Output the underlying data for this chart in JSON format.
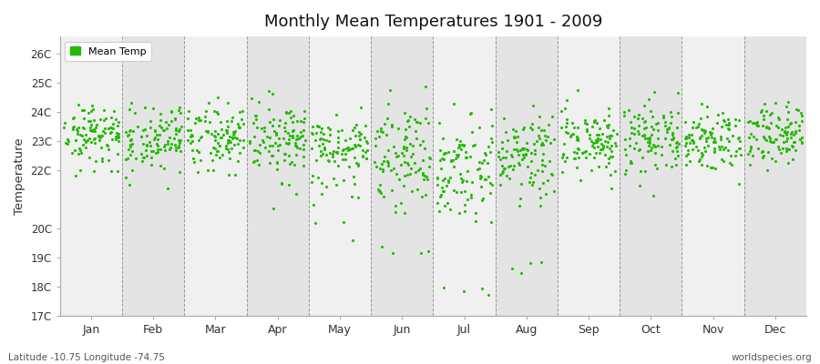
{
  "title": "Monthly Mean Temperatures 1901 - 2009",
  "ylabel": "Temperature",
  "dot_color": "#22bb00",
  "background_color": "#ffffff",
  "plot_bg_color": "#f0f0f0",
  "alt_band_color": "#e4e4e4",
  "ylim": [
    17,
    26.6
  ],
  "yticks": [
    17,
    18,
    19,
    20,
    22,
    23,
    24,
    25,
    26
  ],
  "ytick_labels": [
    "17C",
    "18C",
    "19C",
    "20C",
    "22C",
    "23C",
    "24C",
    "25C",
    "26C"
  ],
  "months": [
    "Jan",
    "Feb",
    "Mar",
    "Apr",
    "May",
    "Jun",
    "Jul",
    "Aug",
    "Sep",
    "Oct",
    "Nov",
    "Dec"
  ],
  "month_positions": [
    0.5,
    1.5,
    2.5,
    3.5,
    4.5,
    5.5,
    6.5,
    7.5,
    8.5,
    9.5,
    10.5,
    11.5
  ],
  "month_dividers": [
    1,
    2,
    3,
    4,
    5,
    6,
    7,
    8,
    9,
    10,
    11
  ],
  "legend_label": "Mean Temp",
  "footnote_left": "Latitude -10.75 Longitude -74.75",
  "footnote_right": "worldspecies.org",
  "n_years": 109,
  "seed": 42,
  "monthly_means": [
    23.3,
    23.1,
    23.2,
    23.1,
    22.7,
    22.4,
    22.2,
    22.5,
    23.0,
    23.2,
    23.1,
    23.3
  ],
  "monthly_stds": [
    0.5,
    0.55,
    0.55,
    0.55,
    0.6,
    0.8,
    0.85,
    0.75,
    0.55,
    0.55,
    0.55,
    0.5
  ],
  "monthly_outlier_low": [
    1.2,
    0.8,
    0.5,
    1.5,
    1.8,
    3.0,
    4.2,
    3.5,
    0.5,
    0.3,
    0.5,
    0.5
  ],
  "outlier_prob": 0.04
}
